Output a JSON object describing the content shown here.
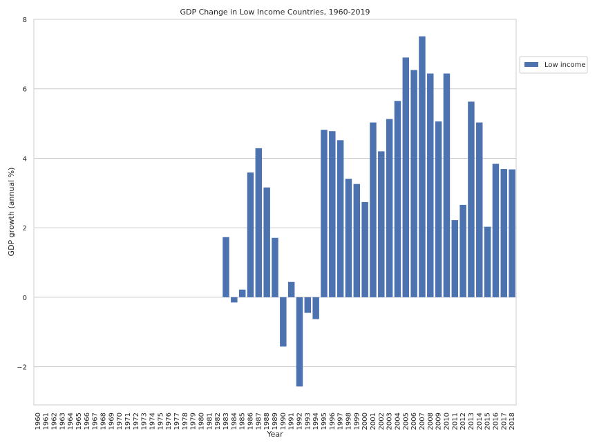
{
  "chart_data": {
    "type": "bar",
    "title": "GDP Change in Low Income Countries, 1960-2019",
    "xlabel": "Year",
    "ylabel": "GDP growth (annual %)",
    "ylim": [
      -3.1,
      8
    ],
    "yticks": [
      -2,
      0,
      2,
      4,
      6,
      8
    ],
    "ytick_labels": [
      "−2",
      "0",
      "2",
      "4",
      "6",
      "8"
    ],
    "grid": "horizontal",
    "legend_position": "right, outside plot area, near top",
    "categories": [
      "1960",
      "1961",
      "1962",
      "1963",
      "1964",
      "1965",
      "1966",
      "1967",
      "1968",
      "1969",
      "1970",
      "1971",
      "1972",
      "1973",
      "1974",
      "1975",
      "1976",
      "1977",
      "1978",
      "1979",
      "1980",
      "1981",
      "1982",
      "1983",
      "1984",
      "1985",
      "1986",
      "1987",
      "1988",
      "1989",
      "1990",
      "1991",
      "1992",
      "1993",
      "1994",
      "1995",
      "1996",
      "1997",
      "1998",
      "1999",
      "2000",
      "2001",
      "2002",
      "2003",
      "2004",
      "2005",
      "2006",
      "2007",
      "2008",
      "2009",
      "2010",
      "2011",
      "2012",
      "2013",
      "2014",
      "2015",
      "2016",
      "2017",
      "2018"
    ],
    "series": [
      {
        "name": "Low income",
        "color": "#4c72b0",
        "values": [
          null,
          null,
          null,
          null,
          null,
          null,
          null,
          null,
          null,
          null,
          null,
          null,
          null,
          null,
          null,
          null,
          null,
          null,
          null,
          null,
          null,
          null,
          null,
          1.73,
          -0.15,
          0.22,
          3.59,
          4.29,
          3.16,
          1.71,
          -1.42,
          0.44,
          -2.57,
          -0.45,
          -0.63,
          4.82,
          4.78,
          4.52,
          3.41,
          3.26,
          2.74,
          5.03,
          4.2,
          5.13,
          5.65,
          6.9,
          6.54,
          7.51,
          6.44,
          5.06,
          6.44,
          2.22,
          2.66,
          5.63,
          5.03,
          2.03,
          3.84,
          3.69,
          3.68
        ]
      }
    ]
  }
}
